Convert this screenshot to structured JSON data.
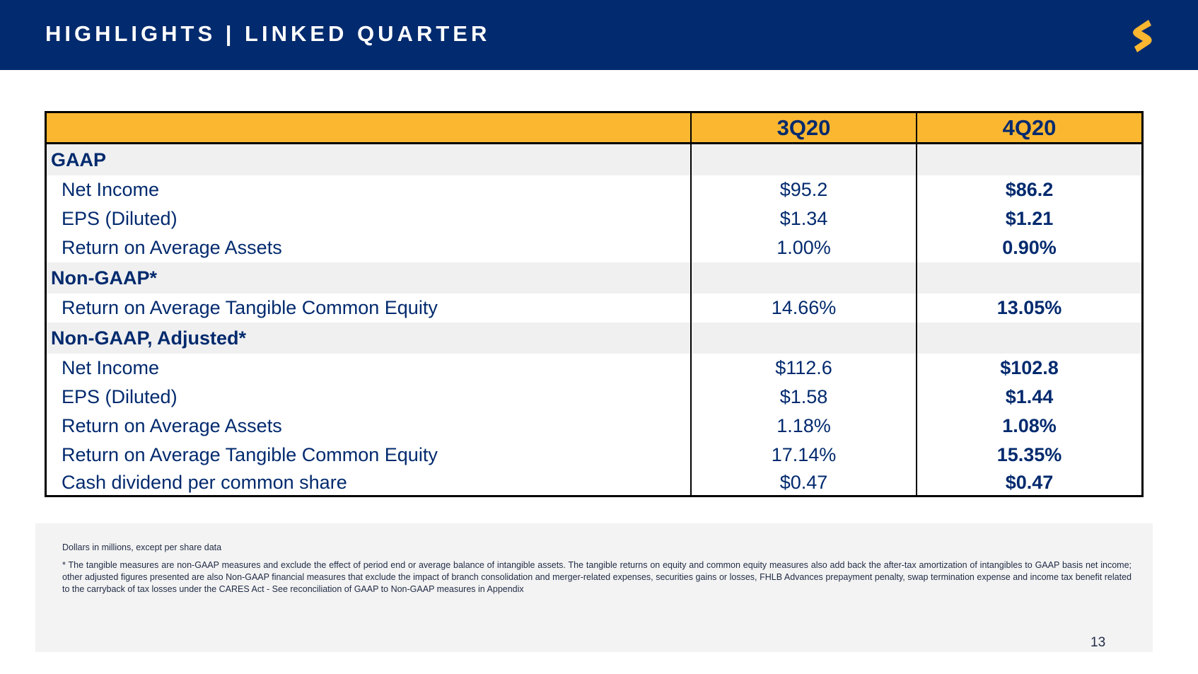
{
  "header": {
    "title": "HIGHLIGHTS | LINKED QUARTER",
    "logo_icon": "brand-s-logo-icon",
    "background": "#022a6e",
    "logo_color": "#fbb730"
  },
  "table": {
    "header_bg": "#fbb730",
    "text_color": "#022a6e",
    "columns": [
      "",
      "3Q20",
      "4Q20"
    ],
    "gaap": {
      "heading": "GAAP",
      "rows": [
        {
          "label": "Net Income",
          "q3": "$95.2",
          "q4": "$86.2"
        },
        {
          "label": "EPS (Diluted)",
          "q3": "$1.34",
          "q4": "$1.21"
        },
        {
          "label": "Return on Average Assets",
          "q3": "1.00%",
          "q4": "0.90%"
        }
      ]
    },
    "non_gaap": {
      "heading": "Non-GAAP*",
      "rows": [
        {
          "label": "Return on Average Tangible Common Equity",
          "q3": "14.66%",
          "q4": "13.05%"
        }
      ]
    },
    "non_gaap_adjusted": {
      "heading": "Non-GAAP, Adjusted*",
      "rows": [
        {
          "label": "Net Income",
          "q3": "$112.6",
          "q4": "$102.8"
        },
        {
          "label": "EPS (Diluted)",
          "q3": "$1.58",
          "q4": "$1.44"
        },
        {
          "label": "Return on Average Assets",
          "q3": "1.18%",
          "q4": "1.08%"
        },
        {
          "label": "Return on Average Tangible Common Equity",
          "q3": "17.14%",
          "q4": "15.35%"
        },
        {
          "label": "Cash dividend per common share",
          "q3": "$0.47",
          "q4": "$0.47"
        }
      ]
    }
  },
  "notes": {
    "units": "Dollars in millions, except per share data",
    "footnote": "*    The tangible measures are non-GAAP measures and exclude the effect of period end or average balance of intangible assets. The tangible returns on equity and common equity measures also add back the after-tax amortization of intangibles to GAAP basis net income; other adjusted figures presented are also Non-GAAP financial measures that exclude the impact of branch consolidation and merger-related expenses, securities gains or losses, FHLB Advances prepayment penalty, swap termination expense and income tax benefit related to the carryback of tax losses under the CARES Act - See reconciliation of GAAP to Non-GAAP measures in Appendix"
  },
  "page_number": "13"
}
